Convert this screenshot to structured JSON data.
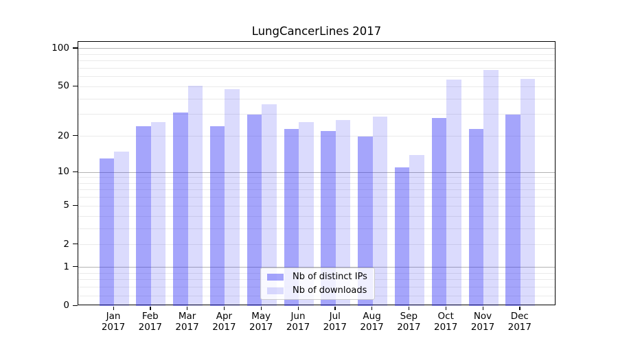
{
  "title": "LungCancerLines 2017",
  "chart_data": {
    "type": "bar",
    "title": "LungCancerLines 2017",
    "categories": [
      "Jan",
      "Feb",
      "Mar",
      "Apr",
      "May",
      "Jun",
      "Jul",
      "Aug",
      "Sep",
      "Oct",
      "Nov",
      "Dec"
    ],
    "category_year": "2017",
    "series": [
      {
        "name": "Nb of distinct IPs",
        "color": "rgba(40,40,245,0.42)",
        "values": [
          13,
          24,
          31,
          24,
          30,
          23,
          22,
          20,
          11,
          28,
          23,
          30
        ]
      },
      {
        "name": "Nb of downloads",
        "color": "rgba(40,40,245,0.17)",
        "values": [
          15,
          26,
          51,
          48,
          36,
          26,
          27,
          29,
          14,
          57,
          68,
          58
        ]
      }
    ],
    "xlabel": "",
    "ylabel": "",
    "yscale": "log1p",
    "ylim": [
      0,
      113
    ],
    "y_ticks_labeled": [
      0,
      1,
      2,
      5,
      10,
      20,
      50,
      100
    ],
    "y_major_gridlines": [
      1,
      10,
      100
    ],
    "y_minor_gridlines": [
      0.2,
      0.4,
      0.6,
      0.8,
      2,
      3,
      4,
      5,
      6,
      7,
      8,
      9,
      20,
      30,
      40,
      50,
      60,
      70,
      80,
      90
    ],
    "grid": true,
    "legend_position": "lower center inside"
  },
  "colors": {
    "background": "#ffffff",
    "bar_dark": "rgba(40,40,245,0.42)",
    "bar_light": "rgba(40,40,245,0.17)",
    "major_gridline": "#b3b3b3",
    "minor_gridline": "#eaeaea",
    "axis": "#000000",
    "legend_border": "#cccccc"
  }
}
